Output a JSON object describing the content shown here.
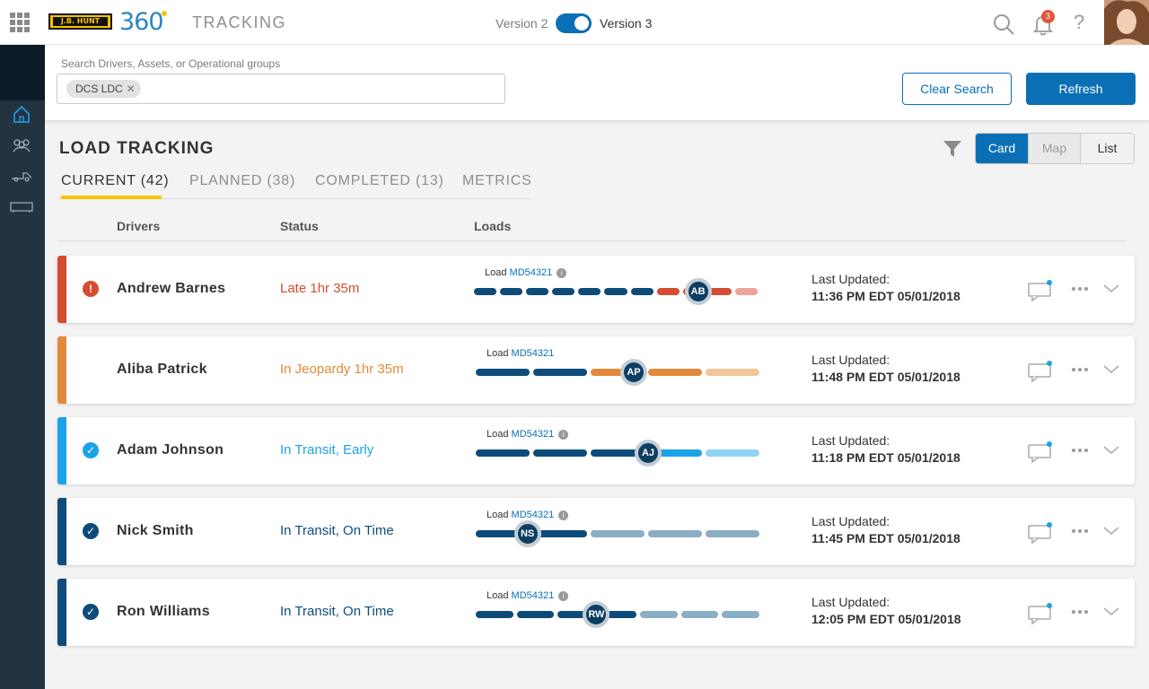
{
  "header": {
    "logo_text": "J.B. HUNT",
    "logo_360": "360",
    "app_title": "TRACKING",
    "version_left": "Version 2",
    "version_right": "Version 3",
    "notification_count": "3",
    "help_label": "?"
  },
  "search": {
    "label": "Search Drivers, Assets, or Operational groups",
    "chip": "DCS LDC",
    "clear_label": "Clear Search",
    "refresh_label": "Refresh"
  },
  "main": {
    "title": "LOAD TRACKING",
    "views": [
      "Card",
      "Map",
      "List"
    ],
    "active_view": "Card",
    "tabs": [
      {
        "label": "CURRENT (42)"
      },
      {
        "label": "PLANNED (38)"
      },
      {
        "label": "COMPLETED (13)"
      },
      {
        "label": "METRICS"
      }
    ],
    "columns": [
      "Drivers",
      "Status",
      "Loads"
    ]
  },
  "cards": [
    {
      "name": "Andrew Barnes",
      "status": "Late 1hr 35m",
      "status_color": "#d64c2f",
      "bar_color": "#d64c2f",
      "icon": "alert-icon",
      "icon_glyph": "!",
      "load_label": "Load",
      "load_id": "MD54321",
      "has_info": true,
      "initials": "AB",
      "progress": 0.78,
      "last_label": "Last Updated:",
      "last_time": "11:36 PM EDT 05/01/2018"
    },
    {
      "name": "Aliba Patrick",
      "status": "In Jeopardy 1hr 35m",
      "status_color": "#e28a3a",
      "bar_color": "#e28a3a",
      "icon": "none",
      "icon_glyph": "",
      "load_label": "Load",
      "load_id": "MD54321",
      "has_info": false,
      "initials": "AP",
      "progress": 0.55,
      "last_label": "Last Updated:",
      "last_time": "11:48 PM EDT 05/01/2018"
    },
    {
      "name": "Adam Johnson",
      "status": "In Transit, Early",
      "status_color": "#1ba3e8",
      "bar_color": "#1ba3e8",
      "icon": "check-icon",
      "icon_glyph": "✓",
      "load_label": "Load",
      "load_id": "MD54321",
      "has_info": true,
      "initials": "AJ",
      "progress": 0.6,
      "last_label": "Last Updated:",
      "last_time": "11:18 PM EDT 05/01/2018"
    },
    {
      "name": "Nick Smith",
      "status": "In Transit, On Time",
      "status_color": "#0d4c7a",
      "bar_color": "#0d4c7a",
      "icon": "check-icon",
      "icon_glyph": "✓",
      "load_label": "Load",
      "load_id": "MD54321",
      "has_info": true,
      "initials": "NS",
      "progress": 0.18,
      "last_label": "Last Updated:",
      "last_time": "11:45 PM EDT 05/01/2018"
    },
    {
      "name": "Ron Williams",
      "status": "In Transit, On Time",
      "status_color": "#0d4c7a",
      "bar_color": "#0d4c7a",
      "icon": "check-icon",
      "icon_glyph": "✓",
      "load_label": "Load",
      "load_id": "MD54321",
      "has_info": true,
      "initials": "RW",
      "progress": 0.42,
      "last_label": "Last Updated:",
      "last_time": "12:05 PM EDT 05/01/2018"
    }
  ]
}
